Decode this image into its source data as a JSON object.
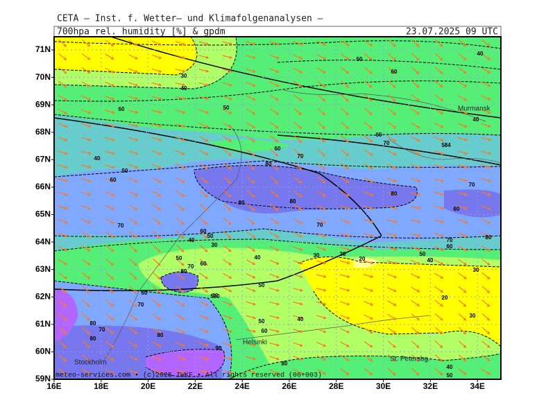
{
  "header": {
    "title": "CETA — Inst. f. Wetter— und Klimafolgenanalysen —",
    "subtitle": "700hpa rel. humidity [%] & gpdm",
    "time": "23.07.2025 09 UTC"
  },
  "map": {
    "lat_labels": [
      "71N",
      "70N",
      "69N",
      "68N",
      "67N",
      "66N",
      "65N",
      "64N",
      "63N",
      "62N",
      "61N",
      "60N",
      "59N"
    ],
    "lon_labels": [
      "16E",
      "18E",
      "20E",
      "22E",
      "24E",
      "26E",
      "28E",
      "30E",
      "32E",
      "34E"
    ],
    "cities": [
      "Murmansk",
      "Helsinki",
      "Stockholm",
      "St. Petersbg."
    ],
    "contour_labels": [
      "30",
      "40",
      "50",
      "60",
      "40",
      "60",
      "50",
      "40",
      "60",
      "70",
      "60",
      "70",
      "80",
      "40",
      "50",
      "60",
      "70",
      "80",
      "80",
      "80",
      "60",
      "70",
      "70",
      "60",
      "50",
      "40",
      "30",
      "70",
      "60",
      "80",
      "50",
      "40",
      "30",
      "30",
      "20",
      "30",
      "40",
      "50",
      "70",
      "60",
      "80",
      "50",
      "60",
      "70",
      "30",
      "20",
      "40",
      "50",
      "30",
      "80",
      "70",
      "80",
      "80",
      "60",
      "90",
      "80",
      "40",
      "50",
      "590",
      "584"
    ],
    "footer": "meteo-services.com • (c)2025 IWKF • All rights reserved (06+003)"
  }
}
